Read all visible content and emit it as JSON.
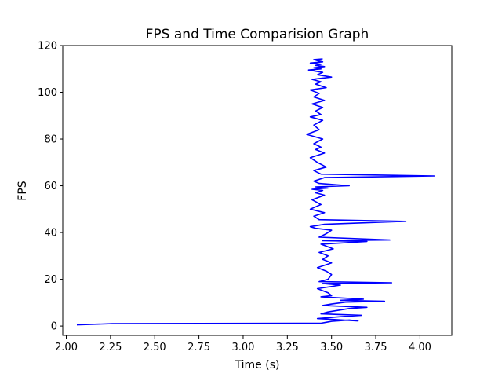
{
  "chart_data": {
    "type": "line",
    "title": "FPS and Time Comparision Graph",
    "xlabel": "Time (s)",
    "ylabel": "FPS",
    "xlim": [
      1.98,
      4.18
    ],
    "ylim": [
      -4,
      120
    ],
    "xticks": [
      2.0,
      2.25,
      2.5,
      2.75,
      3.0,
      3.25,
      3.5,
      3.75,
      4.0
    ],
    "xtick_labels": [
      "2.00",
      "2.25",
      "2.50",
      "2.75",
      "3.00",
      "3.25",
      "3.50",
      "3.75",
      "4.00"
    ],
    "yticks": [
      0,
      20,
      40,
      60,
      80,
      100,
      120
    ],
    "ytick_labels": [
      "0",
      "20",
      "40",
      "60",
      "80",
      "100",
      "120"
    ],
    "grid": false,
    "line_color": "#0000ff",
    "series": [
      {
        "x": [
          2.06,
          2.26,
          3.44,
          3.47,
          3.5,
          3.6,
          3.65,
          3.42,
          3.55,
          3.67,
          3.44,
          3.48,
          3.6,
          3.7,
          3.45,
          3.5,
          3.58,
          3.8,
          3.55,
          3.68,
          3.44,
          3.5,
          3.48,
          3.42,
          3.55,
          3.45,
          3.84,
          3.43,
          3.48,
          3.5,
          3.47,
          3.42,
          3.5,
          3.45,
          3.48,
          3.43,
          3.51,
          3.44,
          3.7,
          3.45,
          3.83,
          3.43,
          3.47,
          3.5,
          3.41,
          3.38,
          3.46,
          3.92,
          3.43,
          3.4,
          3.46,
          3.38,
          3.44,
          3.39,
          3.46,
          3.41,
          3.45,
          3.39,
          3.48,
          3.41,
          3.6,
          3.43,
          3.4,
          3.46,
          4.08,
          3.44,
          3.4,
          3.47,
          3.42,
          3.38,
          3.46,
          3.41,
          3.44,
          3.4,
          3.45,
          3.36,
          3.43,
          3.4,
          3.45,
          3.38,
          3.44,
          3.41,
          3.45,
          3.39,
          3.46,
          3.4,
          3.43,
          3.38,
          3.47,
          3.41,
          3.44,
          3.39,
          3.5,
          3.42,
          3.45,
          3.37,
          3.44,
          3.4,
          3.46,
          3.41,
          3.44,
          3.38,
          3.45,
          3.42,
          3.4,
          3.45
        ],
        "y": [
          0.5,
          1.0,
          1.2,
          1.6,
          2.0,
          2.6,
          2.2,
          3.2,
          4.0,
          4.6,
          5.2,
          6.0,
          7.5,
          8.0,
          8.8,
          9.4,
          10.2,
          10.6,
          11.0,
          11.5,
          12.5,
          13.0,
          14.2,
          16.0,
          17.5,
          18.2,
          18.5,
          19.0,
          20.0,
          22.0,
          23.5,
          25.0,
          27.0,
          28.5,
          30.0,
          31.5,
          33.0,
          35.0,
          36.2,
          36.5,
          36.8,
          38.0,
          39.5,
          41.0,
          41.8,
          42.5,
          43.5,
          44.8,
          45.5,
          47.0,
          48.5,
          50.0,
          52.0,
          54.0,
          56.0,
          57.0,
          58.0,
          58.5,
          59.0,
          59.5,
          60.0,
          61.0,
          62.0,
          63.5,
          64.2,
          65.0,
          66.5,
          68.0,
          70.0,
          72.0,
          74.0,
          75.5,
          76.5,
          78.0,
          80.0,
          82.0,
          84.0,
          86.0,
          88.0,
          89.5,
          90.5,
          92.0,
          93.5,
          95.0,
          96.5,
          98.0,
          99.5,
          101.0,
          102.0,
          103.5,
          104.5,
          105.5,
          106.5,
          107.5,
          108.5,
          109.5,
          110.0,
          110.5,
          111.0,
          111.5,
          112.0,
          112.5,
          113.0,
          113.5,
          114.0,
          114.3
        ]
      }
    ]
  }
}
